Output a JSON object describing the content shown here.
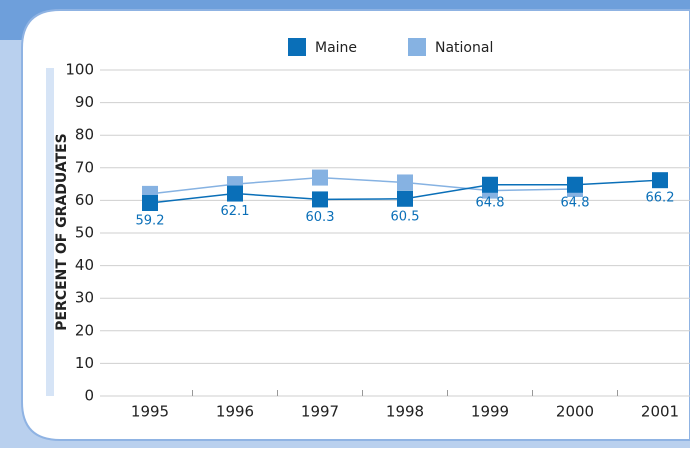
{
  "chart_data": {
    "type": "line",
    "categories": [
      "1995",
      "1996",
      "1997",
      "1998",
      "1999",
      "2000",
      "2001"
    ],
    "series": [
      {
        "name": "Maine",
        "color": "#0a6fb8",
        "values": [
          59.2,
          62.1,
          60.3,
          60.5,
          64.8,
          64.8,
          66.2
        ]
      },
      {
        "name": "National",
        "color": "#86b2e2",
        "values": [
          62,
          65,
          67,
          65.5,
          63,
          63.5,
          null
        ]
      }
    ],
    "ylabel": "PERCENT OF GRADUATES",
    "ylim": [
      0,
      100
    ],
    "yticks": [
      0,
      10,
      20,
      30,
      40,
      50,
      60,
      70,
      80,
      90,
      100
    ],
    "grid": true
  }
}
